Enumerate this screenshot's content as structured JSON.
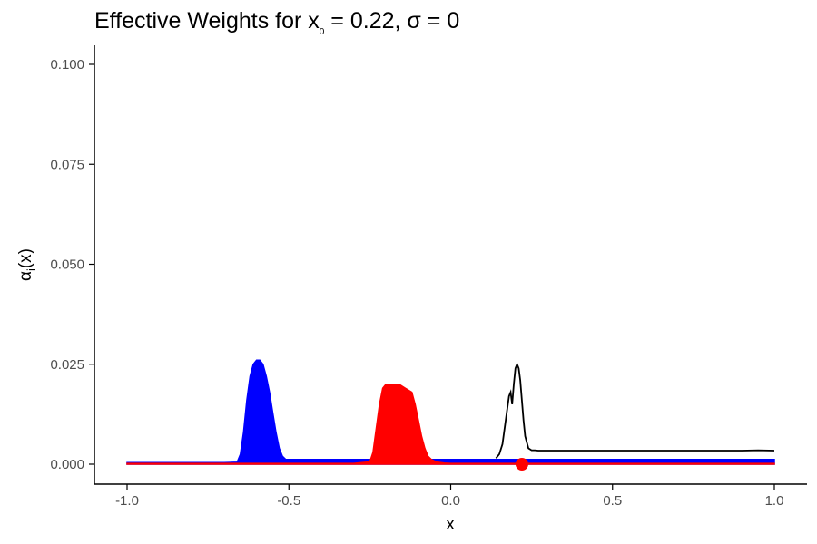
{
  "title": {
    "prefix": "Effective Weights for x",
    "subscript": "0",
    "suffix": " = 0.22, σ = 0"
  },
  "colors": {
    "blue_series": "#0000ff",
    "red_series": "#ff0000",
    "black_series": "#000000",
    "point": "#ff0000",
    "axis": "#000000",
    "tick_text": "#4d4d4d"
  },
  "chart_data": {
    "type": "line",
    "title": "Effective Weights for x₀ = 0.22, σ = 0",
    "xlabel": "x",
    "ylabel": "αᵢ(x)",
    "ylabel_parts": {
      "main": "α",
      "sub": "i",
      "tail": "(x)"
    },
    "xlim": [
      -1.0,
      1.0
    ],
    "ylim": [
      0.0,
      0.1
    ],
    "x_ticks": [
      -1.0,
      -0.5,
      0.0,
      0.5,
      1.0
    ],
    "x_tick_labels": [
      "-1.0",
      "-0.5",
      "0.0",
      "0.5",
      "1.0"
    ],
    "y_ticks": [
      0.0,
      0.025,
      0.05,
      0.075,
      0.1
    ],
    "y_tick_labels": [
      "0.000",
      "0.025",
      "0.050",
      "0.075",
      "0.100"
    ],
    "grid": false,
    "legend": "none",
    "series": [
      {
        "color": "blue",
        "style": "filled-area",
        "x": [
          -1.0,
          -0.9,
          -0.8,
          -0.7,
          -0.66,
          -0.65,
          -0.64,
          -0.63,
          -0.62,
          -0.61,
          -0.6,
          -0.59,
          -0.58,
          -0.57,
          -0.56,
          -0.55,
          -0.54,
          -0.53,
          -0.52,
          -0.51,
          -0.5,
          -0.4,
          -0.3,
          -0.2,
          -0.1,
          0.0,
          0.2,
          0.4,
          0.6,
          0.8,
          1.0
        ],
        "y": [
          0.0004,
          0.0004,
          0.0004,
          0.0004,
          0.0005,
          0.0025,
          0.008,
          0.016,
          0.022,
          0.025,
          0.026,
          0.026,
          0.025,
          0.022,
          0.018,
          0.013,
          0.008,
          0.004,
          0.002,
          0.0012,
          0.0012,
          0.0012,
          0.0012,
          0.0012,
          0.0012,
          0.0012,
          0.0012,
          0.0012,
          0.0012,
          0.0012,
          0.0012
        ]
      },
      {
        "color": "red",
        "style": "filled-area",
        "x": [
          -1.0,
          -0.8,
          -0.6,
          -0.4,
          -0.3,
          -0.25,
          -0.24,
          -0.23,
          -0.22,
          -0.21,
          -0.2,
          -0.18,
          -0.16,
          -0.14,
          -0.12,
          -0.11,
          -0.1,
          -0.09,
          -0.08,
          -0.07,
          -0.06,
          -0.05,
          -0.04,
          -0.02,
          0.0,
          0.5,
          1.0
        ],
        "y": [
          0.0002,
          0.0002,
          0.0002,
          0.0002,
          0.0002,
          0.0006,
          0.003,
          0.009,
          0.015,
          0.019,
          0.02,
          0.02,
          0.02,
          0.019,
          0.018,
          0.015,
          0.011,
          0.007,
          0.004,
          0.002,
          0.0012,
          0.0008,
          0.0005,
          0.0003,
          0.0002,
          0.0002,
          0.0002
        ]
      },
      {
        "color": "black",
        "style": "line",
        "x": [
          0.14,
          0.15,
          0.16,
          0.17,
          0.18,
          0.185,
          0.19,
          0.195,
          0.2,
          0.205,
          0.21,
          0.215,
          0.22,
          0.225,
          0.23,
          0.24,
          0.25,
          0.26,
          0.27,
          0.3,
          0.35,
          0.4,
          0.5,
          0.6,
          0.7,
          0.8,
          0.9,
          0.95,
          1.0
        ],
        "y": [
          0.0015,
          0.0025,
          0.005,
          0.011,
          0.017,
          0.018,
          0.015,
          0.02,
          0.024,
          0.025,
          0.024,
          0.021,
          0.016,
          0.011,
          0.007,
          0.004,
          0.0035,
          0.0035,
          0.0034,
          0.0034,
          0.0034,
          0.0034,
          0.0034,
          0.0034,
          0.0034,
          0.0034,
          0.0034,
          0.0035,
          0.0034
        ]
      }
    ],
    "points": [
      {
        "x": 0.22,
        "y": 0.0,
        "color": "red"
      }
    ]
  }
}
